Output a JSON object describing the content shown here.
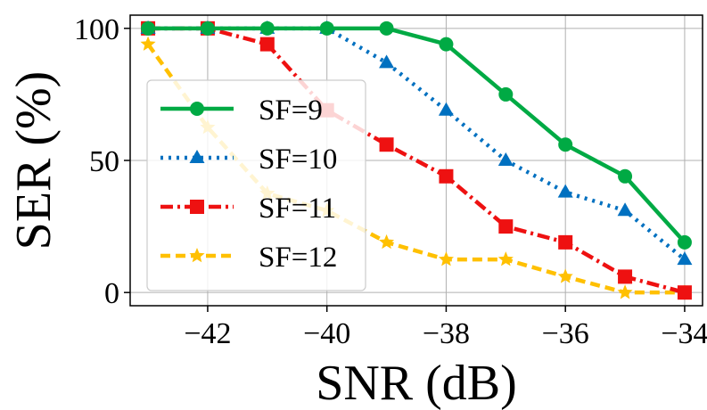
{
  "chart_data": {
    "type": "line",
    "title": "",
    "xlabel": "SNR (dB)",
    "ylabel": "SER (%)",
    "xlim": [
      -43.3,
      -33.7
    ],
    "ylim": [
      -5,
      105
    ],
    "xticks": [
      -42,
      -40,
      -38,
      -36,
      -34
    ],
    "xtick_labels": [
      "−42",
      "−40",
      "−38",
      "−36",
      "−34"
    ],
    "yticks": [
      0,
      50,
      100
    ],
    "ytick_labels": [
      "0",
      "50",
      "100"
    ],
    "grid": true,
    "legend_position": "center-left",
    "x": [
      -43,
      -42,
      -41,
      -40,
      -39,
      -38,
      -37,
      -36,
      -35,
      -34
    ],
    "series": [
      {
        "name": "SF=9",
        "color": "#00aa44",
        "dash": "solid",
        "marker": "circle",
        "values": [
          100,
          100,
          100,
          100,
          100,
          94,
          75,
          56,
          44,
          19
        ]
      },
      {
        "name": "SF=10",
        "color": "#0070c0",
        "dash": "dotted",
        "marker": "triangle",
        "values": [
          100,
          100,
          100,
          100,
          87,
          69,
          50,
          38,
          31,
          12.5
        ]
      },
      {
        "name": "SF=11",
        "color": "#ee1111",
        "dash": "dashdot",
        "marker": "square",
        "values": [
          100,
          100,
          94,
          69,
          56,
          44,
          25,
          19,
          6,
          0
        ]
      },
      {
        "name": "SF=12",
        "color": "#ffc000",
        "dash": "dashed",
        "marker": "star",
        "values": [
          94,
          62.5,
          37.5,
          31,
          19,
          12.5,
          12.5,
          6,
          0,
          0
        ]
      }
    ]
  }
}
